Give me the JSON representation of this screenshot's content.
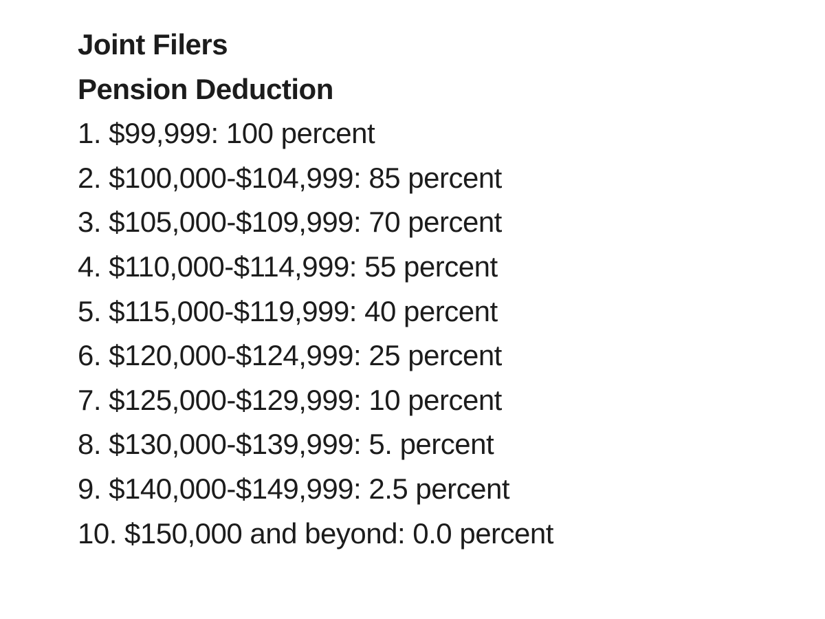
{
  "page": {
    "background_color": "#ffffff",
    "text_color": "#1c1c1c"
  },
  "document": {
    "heading_primary": "Joint Filers",
    "heading_secondary": "Pension Deduction",
    "items": [
      "1. $99,999: 100 percent",
      "2. $100,000-$104,999: 85 percent",
      "3. $105,000-$109,999: 70 percent",
      "4. $110,000-$114,999: 55 percent",
      "5. $115,000-$119,999: 40 percent",
      "6. $120,000-$124,999: 25 percent",
      "7. $125,000-$129,999: 10 percent",
      "8. $130,000-$139,999: 5. percent",
      "9. $140,000-$149,999: 2.5 percent",
      "10. $150,000 and beyond: 0.0 percent"
    ]
  }
}
